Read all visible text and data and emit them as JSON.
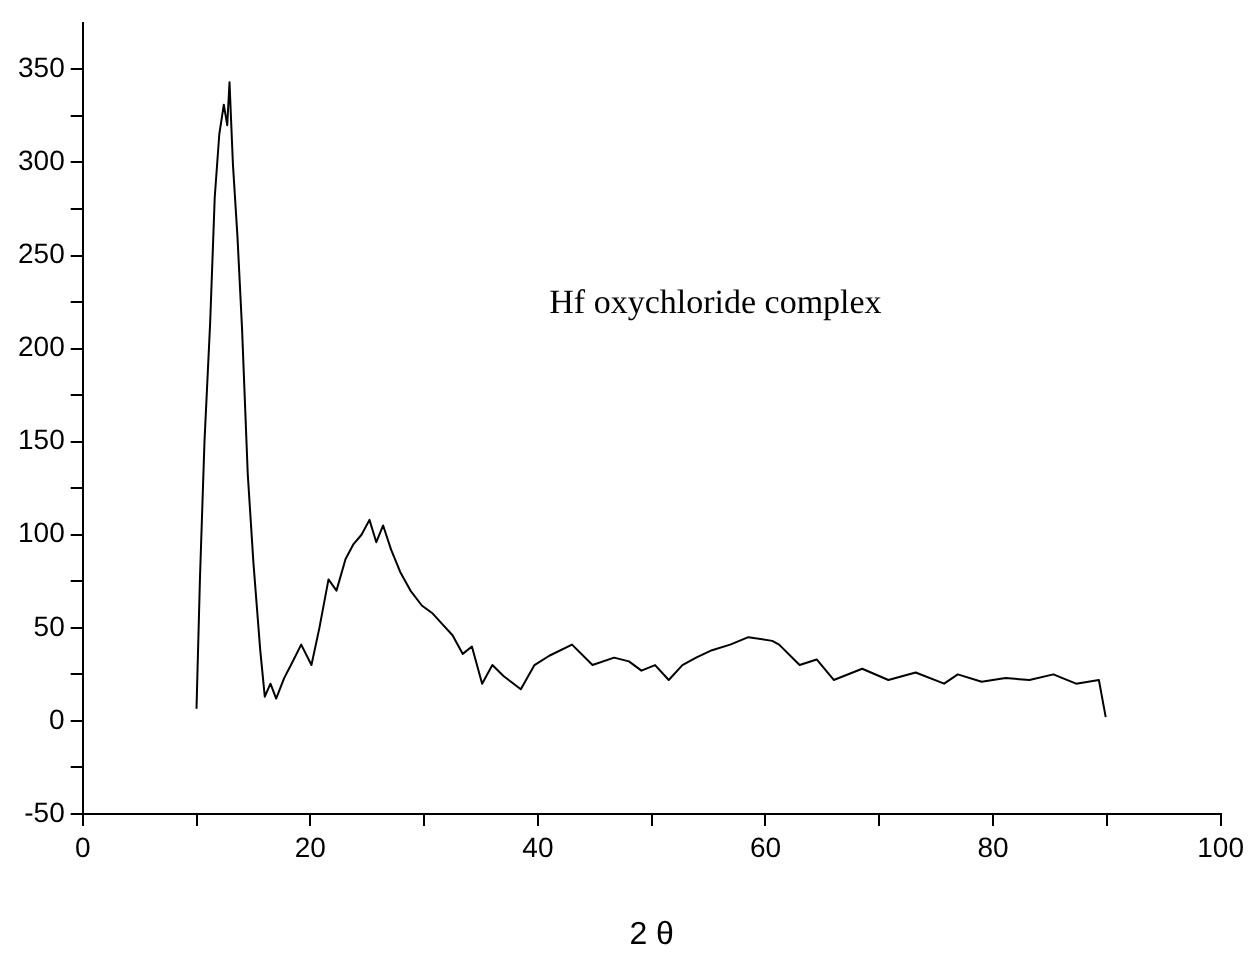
{
  "chart_data": {
    "type": "line",
    "xlabel": "2 θ",
    "annotations": [
      "Hf oxychloride complex"
    ],
    "xlim": [
      0,
      100
    ],
    "xticks": [
      0,
      {
        "value": 10,
        "label": null
      },
      20,
      {
        "value": 30,
        "label": null
      },
      40,
      {
        "value": 50,
        "label": null
      },
      60,
      {
        "value": 70,
        "label": null
      },
      80,
      {
        "value": 90,
        "label": null
      },
      100
    ],
    "ylim": [
      -50,
      375
    ],
    "yticks": [
      -50,
      {
        "value": -25,
        "label": null
      },
      0,
      {
        "value": 25,
        "label": null
      },
      50,
      {
        "value": 75,
        "label": null
      },
      100,
      {
        "value": 125,
        "label": null
      },
      150,
      {
        "value": 175,
        "label": null
      },
      200,
      {
        "value": 225,
        "label": null
      },
      250,
      {
        "value": 275,
        "label": null
      },
      300,
      {
        "value": 325,
        "label": null
      },
      350
    ],
    "grid": false,
    "legend": false,
    "marker": "none",
    "line_style": "solid",
    "series": [
      {
        "color": "#000000",
        "x": [
          10,
          10.3,
          10.7,
          11.2,
          11.6,
          12.0,
          12.4,
          12.7,
          12.9,
          13.2,
          13.6,
          14,
          14.5,
          15.0,
          15.6,
          16,
          16.5,
          17.0,
          17.7,
          18.3,
          19.2,
          20.1,
          20.8,
          21.6,
          22.3,
          23.1,
          23.8,
          24.5,
          25.2,
          25.8,
          26.4,
          27.1,
          27.9,
          28.8,
          29.8,
          30.7,
          31.6,
          32.5,
          33.4,
          34.2,
          35.1,
          36.0,
          37.0,
          38.5,
          39.7,
          41.0,
          43,
          44.8,
          46.7,
          48.0,
          49.1,
          50.3,
          51.5,
          52.7,
          53.9,
          55.3,
          56.9,
          58.5,
          60.6,
          61.2,
          63,
          64.5,
          66,
          68.5,
          70.8,
          73.2,
          75.7,
          76.9,
          79,
          81.1,
          83.2,
          85.3,
          87.3,
          89.3,
          89.9
        ],
        "values": [
          6.5,
          76,
          150,
          214,
          281,
          315,
          331,
          320,
          343,
          299,
          260,
          211,
          133,
          85,
          38,
          13,
          20,
          12,
          23,
          30,
          41,
          30,
          50,
          76,
          70,
          87,
          95,
          100,
          108,
          96,
          105,
          92,
          80,
          70,
          62,
          58,
          52,
          46,
          36,
          40,
          20,
          30,
          24,
          17,
          30,
          35,
          41,
          30,
          34,
          32,
          27,
          30,
          22,
          30,
          34,
          38,
          41,
          45,
          43,
          41,
          30,
          33,
          22,
          28,
          22,
          26,
          20,
          25,
          21,
          23,
          22,
          25,
          20,
          22,
          2
        ]
      }
    ]
  }
}
